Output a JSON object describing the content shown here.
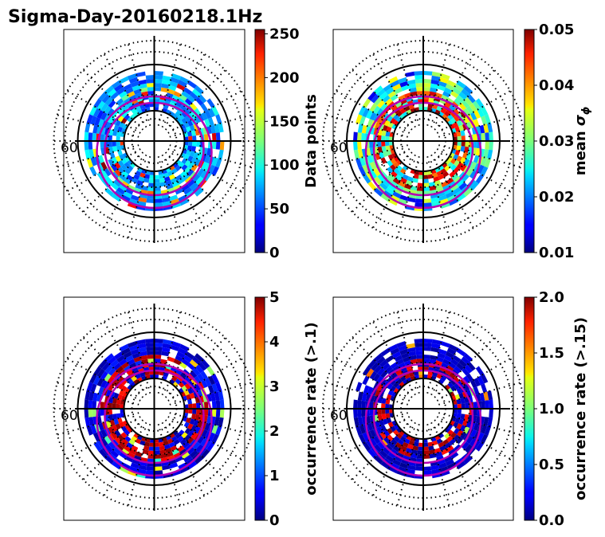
{
  "title": "Sigma-Day-20160218.1Hz",
  "chart_data": [
    {
      "type": "heatmap",
      "panel": "top-left",
      "projection": "polar (magnetic latitude / MLT dial)",
      "lat_tick_label": "60",
      "colormap": "jet",
      "colorbar": {
        "label": "Data points",
        "range": [
          0,
          255
        ],
        "ticks": [
          "0",
          "50",
          "100",
          "150",
          "200",
          "250"
        ]
      },
      "overlays": [
        "magenta auroral oval boundaries",
        "black latitude circles",
        "dotted latitude/MLT grid",
        "black MLT cross-hairs"
      ]
    },
    {
      "type": "heatmap",
      "panel": "top-right",
      "projection": "polar (magnetic latitude / MLT dial)",
      "lat_tick_label": "60",
      "colormap": "jet",
      "colorbar": {
        "label": "mean σφ",
        "label_main": "mean ",
        "label_symbol": "σ",
        "label_sub": "ϕ",
        "range": [
          0.01,
          0.05
        ],
        "ticks": [
          "0.01",
          "0.02",
          "0.03",
          "0.04",
          "0.05"
        ]
      },
      "overlays": [
        "magenta auroral oval boundaries",
        "black latitude circles",
        "dotted latitude/MLT grid",
        "black MLT cross-hairs"
      ]
    },
    {
      "type": "heatmap",
      "panel": "bottom-left",
      "projection": "polar (magnetic latitude / MLT dial)",
      "lat_tick_label": "60",
      "colormap": "jet",
      "colorbar": {
        "label": "occurrence rate (>.1)",
        "range": [
          0,
          5
        ],
        "ticks": [
          "0",
          "1",
          "2",
          "3",
          "4",
          "5"
        ]
      },
      "overlays": [
        "magenta auroral oval boundaries",
        "black latitude circles",
        "dotted latitude/MLT grid",
        "black MLT cross-hairs"
      ]
    },
    {
      "type": "heatmap",
      "panel": "bottom-right",
      "projection": "polar (magnetic latitude / MLT dial)",
      "lat_tick_label": "60",
      "colormap": "jet",
      "colorbar": {
        "label": "occurrence rate (>.15)",
        "range": [
          0,
          2
        ],
        "ticks": [
          "0.0",
          "0.5",
          "1.0",
          "1.5",
          "2.0"
        ]
      },
      "overlays": [
        "magenta auroral oval boundaries",
        "black latitude circles",
        "dotted latitude/MLT grid",
        "black MLT cross-hairs"
      ]
    }
  ],
  "colors": {
    "oval": "#b400b4",
    "grid": "#000000",
    "background": "#ffffff"
  }
}
